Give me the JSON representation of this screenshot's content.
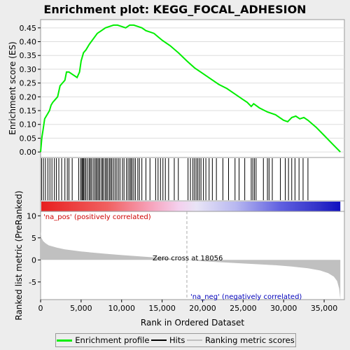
{
  "colors": {
    "profile": "#00ee00",
    "pos_label": "#cc0000",
    "neg_label": "#0000bb",
    "metric_fill": "#c0c0c0",
    "background": "#ededed",
    "panel": "#ffffff"
  },
  "legend": {
    "profile": "Enrichment profile",
    "hits": "Hits",
    "metric": "Ranking metric scores"
  },
  "chart_data": [
    {
      "type": "line",
      "title": "Enrichment plot: KEGG_FOCAL_ADHESION",
      "ylabel": "Enrichment score (ES)",
      "xlim": [
        0,
        37500
      ],
      "ylim": [
        -0.02,
        0.48
      ],
      "yticks": [
        "0.00",
        "0.05",
        "0.10",
        "0.15",
        "0.20",
        "0.25",
        "0.30",
        "0.35",
        "0.40",
        "0.45"
      ],
      "series": [
        {
          "x": [
            0,
            150,
            300,
            500,
            700,
            900,
            1100,
            1300,
            1500,
            1800,
            2100,
            2400,
            2700,
            3000,
            3200,
            3500,
            4000,
            4500,
            4800,
            5000,
            5300,
            5600,
            6000,
            6500,
            7000,
            7500,
            8000,
            8500,
            9000,
            9500,
            10000,
            10500,
            11000,
            11500,
            12000,
            12500,
            13000,
            13500,
            14000,
            15000,
            16000,
            17000,
            18056,
            19000,
            20000,
            21000,
            22000,
            23000,
            24000,
            25000,
            25500,
            26000,
            26300,
            27000,
            28000,
            29000,
            30000,
            30500,
            31000,
            31500,
            32000,
            32500,
            33000,
            34000,
            35000,
            36000,
            37000
          ],
          "y": [
            0.0,
            0.05,
            0.08,
            0.12,
            0.13,
            0.14,
            0.15,
            0.17,
            0.18,
            0.19,
            0.2,
            0.24,
            0.25,
            0.26,
            0.29,
            0.29,
            0.28,
            0.27,
            0.29,
            0.33,
            0.36,
            0.37,
            0.39,
            0.41,
            0.43,
            0.44,
            0.45,
            0.455,
            0.46,
            0.46,
            0.455,
            0.45,
            0.46,
            0.46,
            0.455,
            0.45,
            0.44,
            0.435,
            0.43,
            0.405,
            0.385,
            0.36,
            0.33,
            0.305,
            0.285,
            0.265,
            0.245,
            0.23,
            0.21,
            0.19,
            0.18,
            0.165,
            0.175,
            0.16,
            0.145,
            0.135,
            0.115,
            0.11,
            0.125,
            0.13,
            0.12,
            0.125,
            0.115,
            0.09,
            0.06,
            0.03,
            0.0
          ]
        }
      ]
    },
    {
      "type": "scatter",
      "title": "",
      "xlim": [
        0,
        37500
      ],
      "hits": [
        120,
        350,
        600,
        900,
        1150,
        1400,
        1700,
        1950,
        2250,
        2600,
        3000,
        3300,
        3500,
        3900,
        4700,
        4950,
        5100,
        5200,
        5300,
        5450,
        5600,
        5800,
        6000,
        6150,
        6300,
        6500,
        6700,
        6850,
        7000,
        7150,
        7300,
        7500,
        7650,
        7800,
        8000,
        8150,
        8300,
        8500,
        8650,
        8800,
        9000,
        9200,
        9400,
        9600,
        9800,
        10100,
        10300,
        10600,
        10800,
        11000,
        11150,
        11300,
        11500,
        11700,
        12000,
        12200,
        12500,
        13000,
        13500,
        14200,
        14500,
        14800,
        15100,
        15400,
        15800,
        16500,
        17000,
        18200,
        18500,
        18800,
        19000,
        19200,
        19400,
        19600,
        19800,
        20100,
        20400,
        20800,
        21200,
        21700,
        22500,
        23200,
        24000,
        24500,
        25200,
        26000,
        26200,
        26400,
        26600,
        27500,
        28000,
        28200,
        28600,
        29600,
        30200,
        30600,
        31000,
        31400,
        31900,
        32400,
        33000
      ]
    },
    {
      "type": "area",
      "title": "",
      "xlabel": "Rank in Ordered Dataset",
      "ylabel": "Ranked list metric (PreRanked)",
      "xlim": [
        0,
        37500
      ],
      "ylim": [
        -9,
        11
      ],
      "xticks": [
        "0",
        "5,000",
        "10,000",
        "15,000",
        "20,000",
        "25,000",
        "30,000",
        "35,000"
      ],
      "yticks": [
        "10",
        "5",
        "0",
        "-5"
      ],
      "series": [
        {
          "x": [
            0,
            100,
            300,
            600,
            1000,
            2000,
            3000,
            5000,
            8000,
            10000,
            13000,
            16000,
            18056,
            20000,
            23000,
            26000,
            29000,
            31000,
            33000,
            34500,
            35500,
            36200,
            36600,
            36850,
            37000
          ],
          "y": [
            6.5,
            5.0,
            4.3,
            3.8,
            3.3,
            2.8,
            2.4,
            1.9,
            1.4,
            1.1,
            0.7,
            0.3,
            0.0,
            -0.3,
            -0.6,
            -0.9,
            -1.2,
            -1.5,
            -1.9,
            -2.4,
            -3.0,
            -3.8,
            -4.8,
            -6.5,
            -9.0
          ]
        }
      ],
      "annotations": {
        "pos": "'na_pos' (positively correlated)",
        "neg": "'na_neg' (negatively correlated)",
        "zero": "Zero cross at 18056"
      },
      "zero_cross": 18056
    }
  ]
}
